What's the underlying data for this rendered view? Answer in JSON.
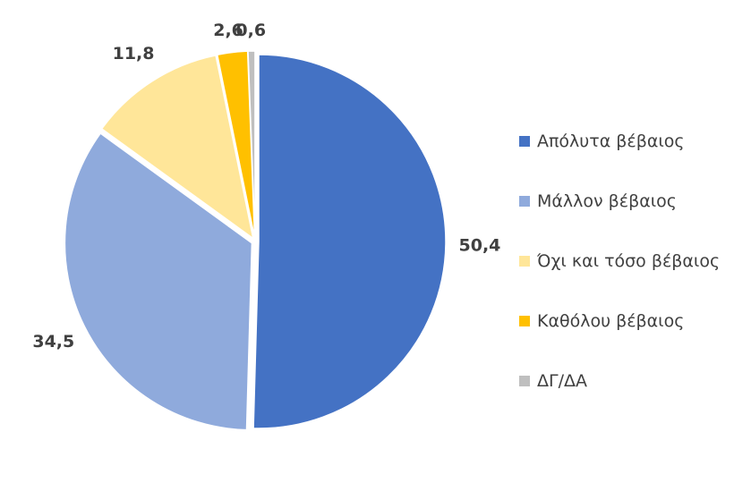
{
  "chart_data": {
    "type": "pie",
    "start_angle": "top, clockwise",
    "legend_position": "right",
    "slices": [
      {
        "name": "Απόλυτα βέβαιος",
        "value": 50.4,
        "label": "50,4",
        "color": "#4472C4"
      },
      {
        "name": "Μάλλον βέβαιος",
        "value": 34.5,
        "label": "34,5",
        "color": "#8FAADC"
      },
      {
        "name": "Όχι και τόσο βέβαιος",
        "value": 11.8,
        "label": "11,8",
        "color": "#FFE699"
      },
      {
        "name": "Καθόλου βέβαιος",
        "value": 2.6,
        "label": "2,6",
        "color": "#FFC000"
      },
      {
        "name": "ΔΓ/ΔΑ",
        "value": 0.6,
        "label": "0,6",
        "color": "#BFBFBF"
      }
    ]
  }
}
